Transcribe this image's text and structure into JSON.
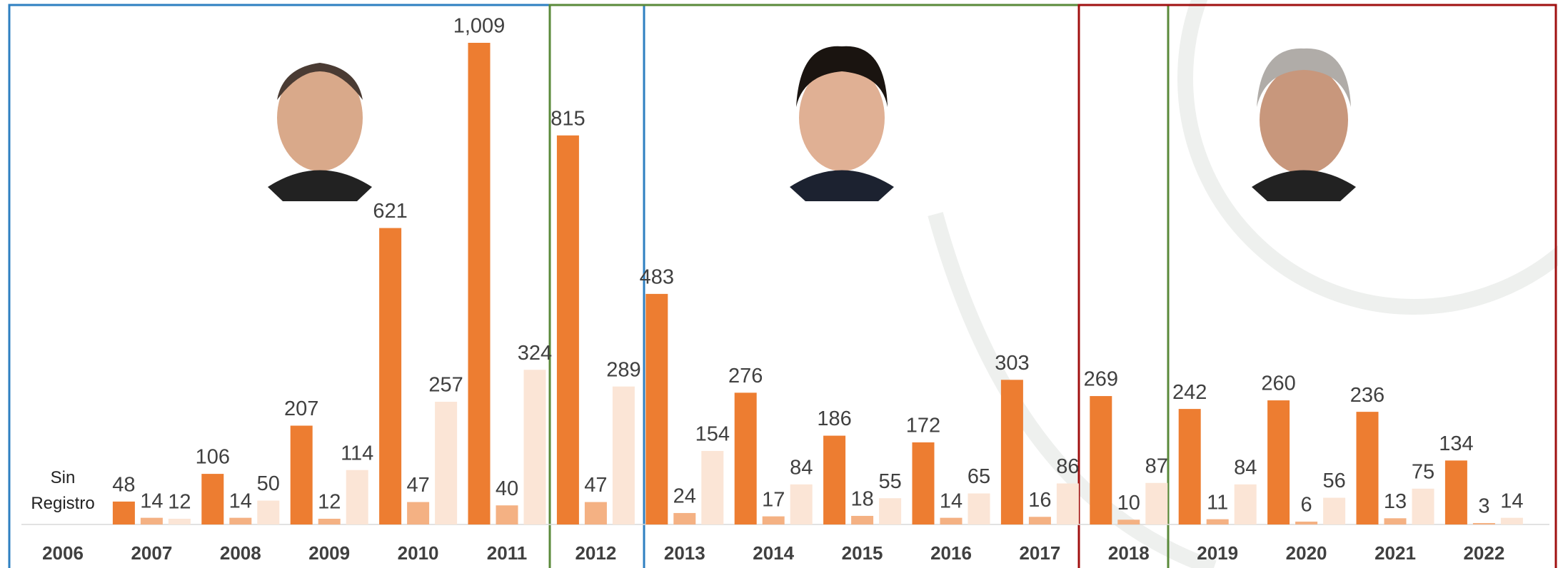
{
  "chart_data": {
    "type": "bar",
    "annotation": "Sin Registro",
    "categories": [
      "2006",
      "2007",
      "2008",
      "2009",
      "2010",
      "2011",
      "2012",
      "2013",
      "2014",
      "2015",
      "2016",
      "2017",
      "2018",
      "2019",
      "2020",
      "2021",
      "2022"
    ],
    "series": [
      {
        "color": "#ed7d31",
        "values": [
          null,
          48,
          106,
          207,
          621,
          1009,
          815,
          483,
          276,
          186,
          172,
          303,
          269,
          242,
          260,
          236,
          134
        ],
        "value_labels": [
          null,
          "48",
          "106",
          "207",
          "621",
          "1,009",
          "815",
          "483",
          "276",
          "186",
          "172",
          "303",
          "269",
          "242",
          "260",
          "236",
          "134"
        ]
      },
      {
        "color": "#f4b183",
        "values": [
          null,
          14,
          14,
          12,
          47,
          40,
          47,
          24,
          17,
          18,
          14,
          16,
          10,
          11,
          6,
          13,
          3
        ]
      },
      {
        "color": "#fbe5d6",
        "values": [
          null,
          12,
          50,
          114,
          257,
          324,
          289,
          154,
          84,
          55,
          65,
          86,
          87,
          84,
          56,
          75,
          14
        ]
      }
    ]
  }
}
